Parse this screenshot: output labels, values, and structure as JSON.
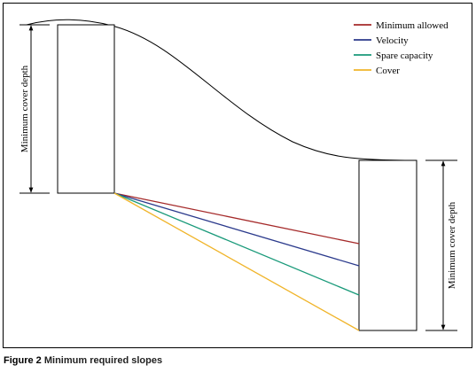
{
  "legend": [
    {
      "label": "Minimum allowed",
      "color": "#a52a2a"
    },
    {
      "label": "Velocity",
      "color": "#2b3a8c"
    },
    {
      "label": "Spare capacity",
      "color": "#1a9a7a"
    },
    {
      "label": "Cover",
      "color": "#f0b429"
    }
  ],
  "labels": {
    "left_depth": "Minimum cover depth",
    "right_depth": "Minimum cover depth"
  },
  "caption": {
    "label": "Figure 2",
    "title": "Minimum required slopes"
  }
}
